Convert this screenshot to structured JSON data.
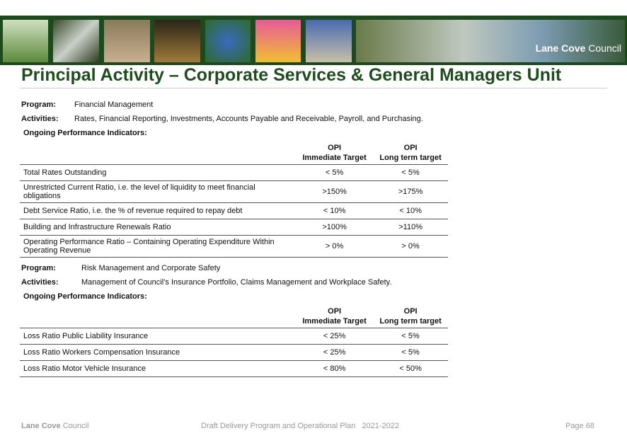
{
  "banner": {
    "brand_bold": "Lane Cove",
    "brand_rest": "Council"
  },
  "title": "Principal Activity – Corporate Services & General Managers Unit",
  "sections": [
    {
      "program_label": "Program:",
      "program": "Financial Management",
      "activities_label": "Activities:",
      "activities": "Rates, Financial Reporting, Investments, Accounts Payable and Receivable, Payroll, and Purchasing.",
      "indicators_heading": "Ongoing Performance Indicators:",
      "table": {
        "header": [
          [
            "OPI",
            "Immediate Target"
          ],
          [
            "OPI",
            "Long term target"
          ]
        ],
        "rows": [
          [
            "Total Rates Outstanding",
            "< 5%",
            "< 5%"
          ],
          [
            "Unrestricted Current Ratio, i.e. the level of liquidity to meet financial obligations",
            ">150%",
            ">175%"
          ],
          [
            "Debt Service Ratio, i.e. the % of revenue required to repay debt",
            "< 10%",
            "< 10%"
          ],
          [
            "Building and Infrastructure Renewals Ratio",
            ">100%",
            ">110%"
          ],
          [
            "Operating Performance Ratio – Containing Operating Expenditure Within Operating Revenue",
            "> 0%",
            "> 0%"
          ]
        ]
      }
    },
    {
      "program_label": "Program:",
      "program": "Risk Management and Corporate Safety",
      "activities_label": "Activities:",
      "activities": "Management of Council’s Insurance Portfolio, Claims Management and Workplace Safety.",
      "indicators_heading": "Ongoing Performance Indicators:",
      "table": {
        "header": [
          [
            "OPI",
            "Immediate Target"
          ],
          [
            "OPI",
            "Long term target"
          ]
        ],
        "rows": [
          [
            "Loss Ratio Public Liability Insurance",
            "< 25%",
            "< 5%"
          ],
          [
            "Loss Ratio Workers Compensation Insurance",
            "< 25%",
            "< 5%"
          ],
          [
            "Loss Ratio Motor Vehicle Insurance",
            "< 80%",
            "< 50%"
          ]
        ]
      }
    }
  ],
  "footer": {
    "org_bold": "Lane Cove",
    "org_rest": "Council",
    "document": "Draft Delivery Program and Operational Plan   2021-2022",
    "page": "Page 68"
  }
}
